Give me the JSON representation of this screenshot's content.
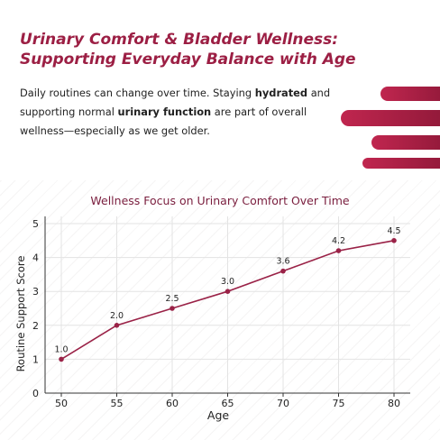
{
  "header": {
    "title_line1": "Urinary Comfort & Bladder Wellness:",
    "title_line2": "Supporting Everyday Balance with Age",
    "intro": {
      "p1": "Daily routines can change over time. Staying ",
      "b1": "hydrated",
      "p2": " and supporting normal ",
      "b2": "urinary function",
      "p3": " are part of overall wellness—especially as we get older."
    }
  },
  "colors": {
    "accent": "#9c1f44",
    "line": "#9a2247",
    "text": "#222222",
    "title": "#7a1e3e"
  },
  "chart_data": {
    "type": "line",
    "title": "Wellness Focus on Urinary Comfort Over Time",
    "xlabel": "Age",
    "ylabel": "Routine Support Score",
    "x": [
      50,
      55,
      60,
      65,
      70,
      75,
      80
    ],
    "values": [
      1.0,
      2.0,
      2.5,
      3.0,
      3.6,
      4.2,
      4.5
    ],
    "data_labels": [
      "1.0",
      "2.0",
      "2.5",
      "3.0",
      "3.6",
      "4.2",
      "4.5"
    ],
    "xticks": [
      "50",
      "55",
      "60",
      "65",
      "70",
      "75",
      "80"
    ],
    "yticks": [
      "0",
      "1",
      "2",
      "3",
      "4",
      "5"
    ],
    "xlim": [
      50,
      80
    ],
    "ylim": [
      0,
      5
    ],
    "grid": true
  }
}
